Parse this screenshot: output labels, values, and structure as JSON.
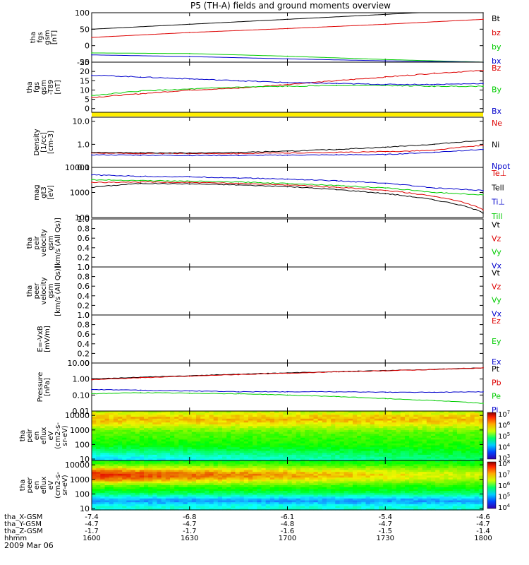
{
  "title": "P5 (TH-A) fields and ground moments overview",
  "date": "2009 Mar 06",
  "colors": {
    "black": "#000000",
    "red": "#dd0000",
    "green": "#00cc00",
    "blue": "#0000cc",
    "yellow": "#ffee00"
  },
  "chart_data": [
    {
      "type": "line",
      "id": "fgs_gsm",
      "ylabel": [
        "tha",
        "fgs",
        "gsm",
        "[nT]"
      ],
      "ylim": [
        -50,
        100
      ],
      "yticks": [
        -50,
        0,
        50,
        100
      ],
      "ytick_labels": [
        "-50",
        "0",
        "50",
        "100"
      ],
      "x": [
        1600,
        1630,
        1700,
        1730,
        1800
      ],
      "series": [
        {
          "name": "Bt",
          "color": "black",
          "values": [
            50,
            65,
            80,
            95,
            110
          ]
        },
        {
          "name": "bz",
          "color": "red",
          "values": [
            25,
            40,
            52,
            65,
            80
          ]
        },
        {
          "name": "by",
          "color": "green",
          "values": [
            -22,
            -24,
            -32,
            -42,
            -50
          ]
        },
        {
          "name": "bx",
          "color": "blue",
          "values": [
            -28,
            -33,
            -40,
            -46,
            -50
          ]
        }
      ]
    },
    {
      "type": "line",
      "id": "fgs_gsm_zoom",
      "ylabel": [
        "tha",
        "fgs",
        "gsm",
        "-T89",
        "[nT]"
      ],
      "ylim": [
        -2,
        25
      ],
      "yticks": [
        0,
        5,
        10,
        15,
        20,
        25
      ],
      "ytick_labels": [
        "0",
        "5",
        "10",
        "15",
        "20",
        "25"
      ],
      "x": [
        1600,
        1615,
        1630,
        1645,
        1700,
        1715,
        1730,
        1745,
        1800
      ],
      "series": [
        {
          "name": "Bz",
          "color": "red",
          "values": [
            6,
            8,
            10,
            11,
            13,
            15,
            17,
            19,
            20.5
          ]
        },
        {
          "name": "By",
          "color": "green",
          "values": [
            7,
            9.5,
            10.5,
            11.5,
            12,
            12.5,
            12.5,
            12,
            12
          ]
        },
        {
          "name": "Bx",
          "color": "blue",
          "values": [
            18,
            17,
            16,
            15,
            14,
            13.5,
            13,
            13,
            13.5
          ]
        }
      ]
    },
    {
      "type": "line",
      "id": "density",
      "log": true,
      "ylabel": [
        "Density",
        "[1/cc]",
        "[cm-3]"
      ],
      "ylim": [
        0.1,
        15
      ],
      "yticks": [
        0.1,
        1.0,
        10.0
      ],
      "ytick_labels": [
        "0.1",
        "1.0",
        "10.0"
      ],
      "x": [
        1600,
        1615,
        1630,
        1645,
        1700,
        1715,
        1730,
        1745,
        1800
      ],
      "series": [
        {
          "name": "Ne",
          "color": "red",
          "values": [
            0.42,
            0.4,
            0.4,
            0.4,
            0.42,
            0.45,
            0.48,
            0.55,
            0.9
          ]
        },
        {
          "name": "Ni",
          "color": "black",
          "values": [
            0.45,
            0.43,
            0.42,
            0.45,
            0.5,
            0.6,
            0.75,
            1.0,
            1.5
          ]
        },
        {
          "name": "Npot",
          "color": "blue",
          "values": [
            0.35,
            0.34,
            0.33,
            0.33,
            0.34,
            0.35,
            0.36,
            0.45,
            0.6
          ]
        }
      ]
    },
    {
      "type": "line",
      "id": "temp",
      "log": true,
      "ylabel": [
        "mag",
        "gt3",
        "[eV]"
      ],
      "ylim": [
        100,
        10000
      ],
      "yticks": [
        100,
        1000,
        10000
      ],
      "ytick_labels": [
        "100",
        "1000",
        "10000"
      ],
      "x": [
        1600,
        1615,
        1630,
        1645,
        1700,
        1715,
        1730,
        1745,
        1800
      ],
      "series": [
        {
          "name": "Te⊥",
          "color": "red",
          "values": [
            2500,
            2600,
            2500,
            2300,
            2000,
            1600,
            1200,
            700,
            200
          ]
        },
        {
          "name": "Tell",
          "color": "black",
          "values": [
            1600,
            2300,
            2200,
            2000,
            1700,
            1300,
            900,
            500,
            150
          ]
        },
        {
          "name": "Ti⊥",
          "color": "blue",
          "values": [
            5000,
            4400,
            4200,
            3800,
            3400,
            2900,
            2300,
            1500,
            1200
          ]
        },
        {
          "name": "Till",
          "color": "green",
          "values": [
            3200,
            3000,
            2800,
            2600,
            2300,
            1900,
            1500,
            1000,
            800
          ]
        }
      ]
    },
    {
      "type": "line",
      "id": "peir_vel",
      "empty": true,
      "ylabel": [
        "tha",
        "peir",
        "velocity",
        "gsm",
        "[km/s (All Qs)]"
      ],
      "ylim": [
        0,
        1
      ],
      "yticks": [
        0,
        0.2,
        0.4,
        0.6,
        0.8,
        1.0
      ],
      "ytick_labels": [
        "0",
        "0.2",
        "0.4",
        "0.6",
        "0.8",
        "1.0"
      ],
      "series": [
        {
          "name": "Vt",
          "color": "black"
        },
        {
          "name": "Vz",
          "color": "red"
        },
        {
          "name": "Vy",
          "color": "green"
        },
        {
          "name": "Vx",
          "color": "blue"
        }
      ]
    },
    {
      "type": "line",
      "id": "peer_vel",
      "empty": true,
      "ylabel": [
        "tha",
        "peer",
        "velocity",
        "gsm",
        "[km/s (All Qs)]"
      ],
      "ylim": [
        0,
        1
      ],
      "yticks": [
        0,
        0.2,
        0.4,
        0.6,
        0.8,
        1.0
      ],
      "ytick_labels": [
        "0",
        "0.2",
        "0.4",
        "0.6",
        "0.8",
        "1.0"
      ],
      "series": [
        {
          "name": "Vt",
          "color": "black"
        },
        {
          "name": "Vz",
          "color": "red"
        },
        {
          "name": "Vy",
          "color": "green"
        },
        {
          "name": "Vx",
          "color": "blue"
        }
      ]
    },
    {
      "type": "line",
      "id": "efield",
      "empty": true,
      "ylabel": [
        "E=-VxB",
        "[mV/m]"
      ],
      "ylim": [
        0,
        1
      ],
      "yticks": [
        0,
        0.2,
        0.4,
        0.6,
        0.8,
        1.0
      ],
      "ytick_labels": [
        "0",
        "0.2",
        "0.4",
        "0.6",
        "0.8",
        "1.0"
      ],
      "series": [
        {
          "name": "Ez",
          "color": "red"
        },
        {
          "name": "Ey",
          "color": "green"
        },
        {
          "name": "Ex",
          "color": "blue"
        }
      ]
    },
    {
      "type": "line",
      "id": "pressure",
      "log": true,
      "ylabel": [
        "Pressure",
        "[nPa]"
      ],
      "ylim": [
        0.01,
        10
      ],
      "yticks": [
        0.01,
        0.1,
        1.0,
        10.0
      ],
      "ytick_labels": [
        "0.01",
        "0.10",
        "1.00",
        "10.00"
      ],
      "x": [
        1600,
        1615,
        1630,
        1645,
        1700,
        1715,
        1730,
        1745,
        1800
      ],
      "series": [
        {
          "name": "Pt",
          "color": "black",
          "values": [
            1.0,
            1.3,
            1.6,
            2.0,
            2.4,
            2.9,
            3.4,
            4.0,
            5.0
          ]
        },
        {
          "name": "Pb",
          "color": "red",
          "values": [
            0.9,
            1.2,
            1.5,
            1.9,
            2.3,
            2.8,
            3.3,
            3.9,
            5.0
          ]
        },
        {
          "name": "Pe",
          "color": "green",
          "values": [
            0.12,
            0.14,
            0.13,
            0.12,
            0.1,
            0.08,
            0.06,
            0.045,
            0.03
          ]
        },
        {
          "name": "Pi",
          "color": "blue",
          "values": [
            0.22,
            0.2,
            0.18,
            0.16,
            0.16,
            0.16,
            0.15,
            0.15,
            0.16
          ]
        }
      ]
    },
    {
      "type": "heatmap",
      "id": "peir_spec",
      "log": true,
      "ylabel": [
        "tha",
        "peir",
        "en",
        "eflux",
        "eV",
        "(cm2-s-",
        "sr-eV)"
      ],
      "ylim": [
        8,
        20000
      ],
      "yticks": [
        10,
        100,
        1000,
        10000
      ],
      "ytick_labels": [
        "10",
        "100",
        "1000",
        "10000"
      ],
      "cbar_exp": [
        3,
        4,
        5,
        6,
        7
      ]
    },
    {
      "type": "heatmap",
      "id": "peer_spec",
      "log": true,
      "ylabel": [
        "tha",
        "peer",
        "en",
        "eflux",
        "eV",
        "(cm2-s-",
        "sr-eV)"
      ],
      "ylim": [
        8,
        20000
      ],
      "yticks": [
        10,
        100,
        1000,
        10000
      ],
      "ytick_labels": [
        "10",
        "100",
        "1000",
        "10000"
      ],
      "cbar_exp": [
        4,
        5,
        6,
        7,
        8
      ]
    }
  ],
  "xaxis": {
    "ticks": [
      1600,
      1630,
      1700,
      1730,
      1800
    ],
    "rows": [
      {
        "label": "tha_X-GSM",
        "values": [
          "-7.4",
          "-6.8",
          "-6.1",
          "-5.4",
          "-4.6"
        ]
      },
      {
        "label": "tha_Y-GSM",
        "values": [
          "-4.7",
          "-4.7",
          "-4.8",
          "-4.7",
          "-4.7"
        ]
      },
      {
        "label": "tha_Z-GSM",
        "values": [
          "-1.7",
          "-1.7",
          "-1.6",
          "-1.5",
          "-1.4"
        ]
      },
      {
        "label": "hhmm",
        "values": [
          "1600",
          "1630",
          "1700",
          "1730",
          "1800"
        ]
      }
    ]
  }
}
